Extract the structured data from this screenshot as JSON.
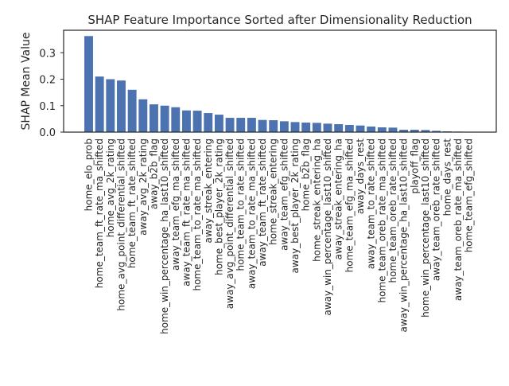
{
  "chart_data": {
    "type": "bar",
    "title": "SHAP Feature Importance Sorted after Dimensionality Reduction",
    "xlabel": "",
    "ylabel": "SHAP Mean Value",
    "ylim": [
      0,
      0.385
    ],
    "yticks": [
      "0.0",
      "0.1",
      "0.2",
      "0.3"
    ],
    "grid": false,
    "bar_color": "#4c72b0",
    "categories": [
      "home_elo_prob",
      "home_team_ft_rate_ma_shifted",
      "home_avg_2k_rating",
      "home_avg_point_differential_shifted",
      "home_team_ft_rate_shifted",
      "away_avg_2k_rating",
      "away_b2b_flag",
      "home_win_percentage_ha_last10_shifted",
      "away_team_efg_ma_shifted",
      "away_team_ft_rate_ma_shifted",
      "home_team_to_rate_ma_shifted",
      "away_streak_entering",
      "home_best_player_2k_rating",
      "away_avg_point_differential_shifted",
      "home_team_to_rate_shifted",
      "away_team_to_rate_ma_shifted",
      "away_team_ft_rate_shifted",
      "home_streak_entering",
      "away_team_efg_shifted",
      "away_best_player_2k_rating",
      "home_b2b_flag",
      "home_streak_entering_ha",
      "away_win_percentage_last10_shifted",
      "away_streak_entering_ha",
      "home_team_efg_ma_shifted",
      "away_days_rest",
      "away_team_to_rate_shifted",
      "home_team_oreb_rate_ma_shifted",
      "home_team_oreb_rate_shifted",
      "away_win_percentage_ha_last10_shifted",
      "playoff_flag",
      "home_win_percentage_last10_shifted",
      "away_team_oreb_rate_shifted",
      "home_days_rest",
      "away_team_oreb_rate_ma_shifted",
      "home_team_efg_shifted"
    ],
    "values": [
      0.363,
      0.21,
      0.2,
      0.195,
      0.16,
      0.124,
      0.105,
      0.1,
      0.094,
      0.082,
      0.081,
      0.072,
      0.066,
      0.054,
      0.054,
      0.054,
      0.046,
      0.045,
      0.041,
      0.038,
      0.036,
      0.035,
      0.032,
      0.03,
      0.027,
      0.025,
      0.021,
      0.018,
      0.017,
      0.009,
      0.009,
      0.008,
      0.005,
      0.003,
      0.002,
      0.001
    ]
  }
}
